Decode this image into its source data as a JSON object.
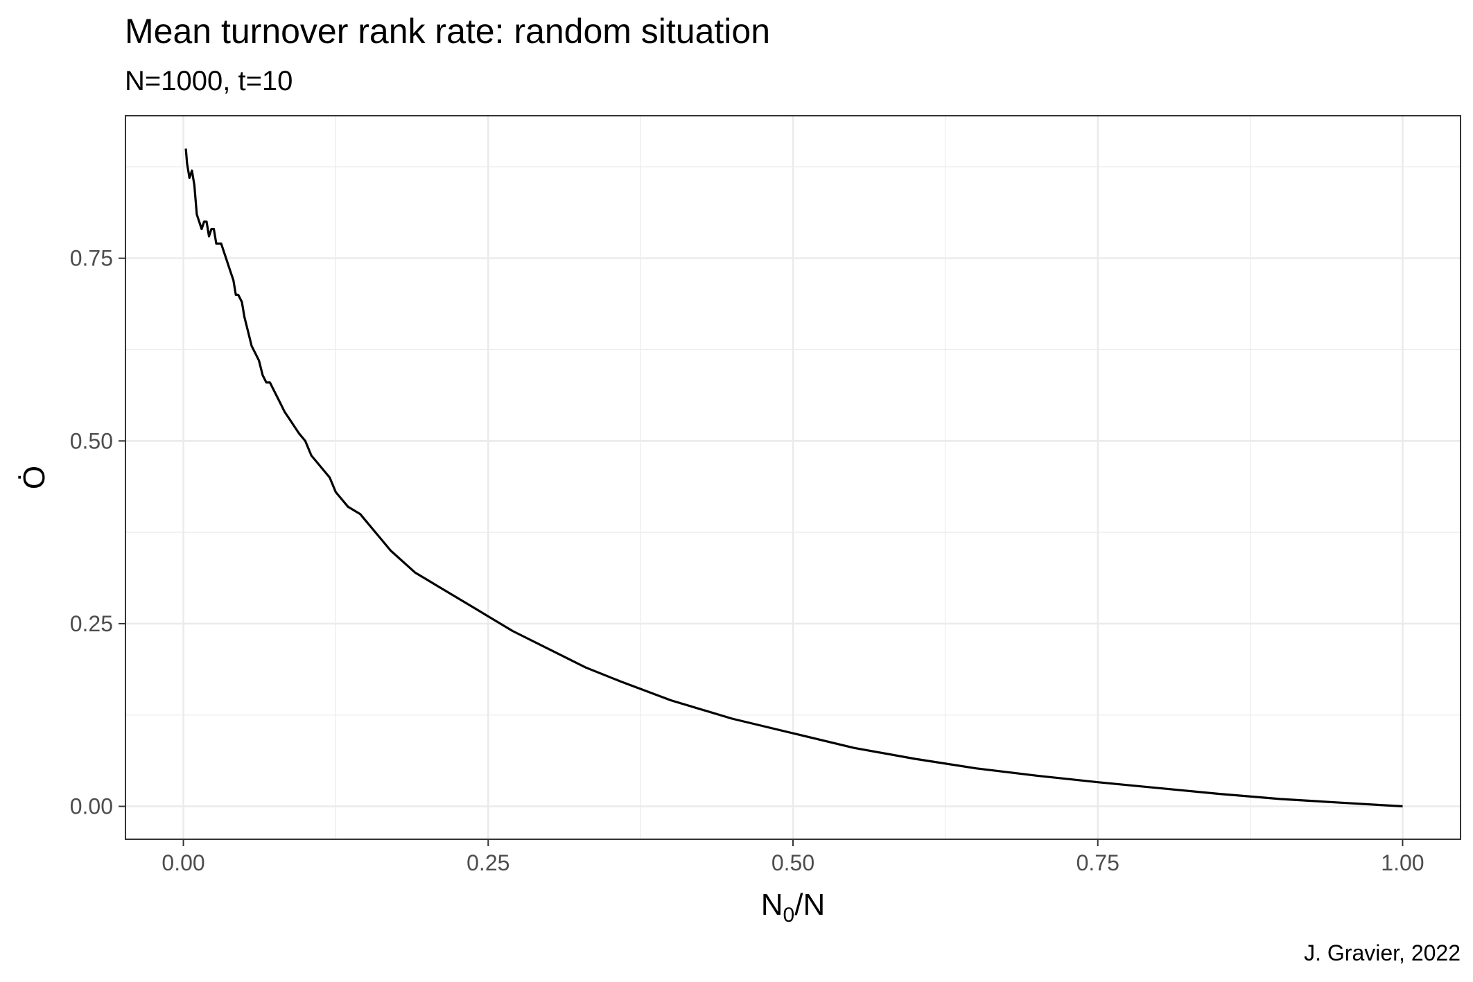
{
  "chart_data": {
    "type": "line",
    "title": "Mean turnover rank rate: random situation",
    "subtitle": "N=1000, t=10",
    "caption": "J. Gravier, 2022",
    "xlabel": {
      "base": "N",
      "sub": "0",
      "rest": "/N"
    },
    "ylabel": "Ȯ",
    "xlim": [
      -0.0475,
      1.0475
    ],
    "ylim": [
      -0.045,
      0.945
    ],
    "x_ticks": [
      0.0,
      0.25,
      0.5,
      0.75,
      1.0
    ],
    "x_tick_labels": [
      "0.00",
      "0.25",
      "0.50",
      "0.75",
      "1.00"
    ],
    "y_ticks": [
      0.0,
      0.25,
      0.5,
      0.75
    ],
    "y_tick_labels": [
      "0.00",
      "0.25",
      "0.50",
      "0.75"
    ],
    "grid": true,
    "line_color": "#000000",
    "series": [
      {
        "x": [
          0.002,
          0.003,
          0.005,
          0.007,
          0.009,
          0.011,
          0.013,
          0.015,
          0.017,
          0.019,
          0.021,
          0.023,
          0.025,
          0.027,
          0.029,
          0.031,
          0.033,
          0.035,
          0.037,
          0.039,
          0.041,
          0.043,
          0.045,
          0.048,
          0.05,
          0.053,
          0.056,
          0.059,
          0.062,
          0.065,
          0.068,
          0.071,
          0.074,
          0.077,
          0.08,
          0.083,
          0.087,
          0.091,
          0.095,
          0.1,
          0.105,
          0.11,
          0.115,
          0.12,
          0.125,
          0.13,
          0.135,
          0.14,
          0.145,
          0.15,
          0.16,
          0.17,
          0.18,
          0.19,
          0.2,
          0.21,
          0.22,
          0.23,
          0.24,
          0.25,
          0.27,
          0.3,
          0.33,
          0.36,
          0.4,
          0.45,
          0.5,
          0.55,
          0.6,
          0.65,
          0.7,
          0.75,
          0.8,
          0.85,
          0.9,
          0.95,
          1.0
        ],
        "y": [
          0.9,
          0.88,
          0.86,
          0.87,
          0.85,
          0.81,
          0.8,
          0.79,
          0.8,
          0.8,
          0.78,
          0.79,
          0.79,
          0.77,
          0.77,
          0.77,
          0.76,
          0.75,
          0.74,
          0.73,
          0.72,
          0.7,
          0.7,
          0.69,
          0.67,
          0.65,
          0.63,
          0.62,
          0.61,
          0.59,
          0.58,
          0.58,
          0.57,
          0.56,
          0.55,
          0.54,
          0.53,
          0.52,
          0.51,
          0.5,
          0.48,
          0.47,
          0.46,
          0.45,
          0.43,
          0.42,
          0.41,
          0.405,
          0.4,
          0.39,
          0.37,
          0.35,
          0.335,
          0.32,
          0.31,
          0.3,
          0.29,
          0.28,
          0.27,
          0.26,
          0.24,
          0.215,
          0.19,
          0.17,
          0.145,
          0.12,
          0.1,
          0.08,
          0.065,
          0.052,
          0.042,
          0.033,
          0.025,
          0.017,
          0.01,
          0.005,
          0.0
        ]
      }
    ]
  }
}
